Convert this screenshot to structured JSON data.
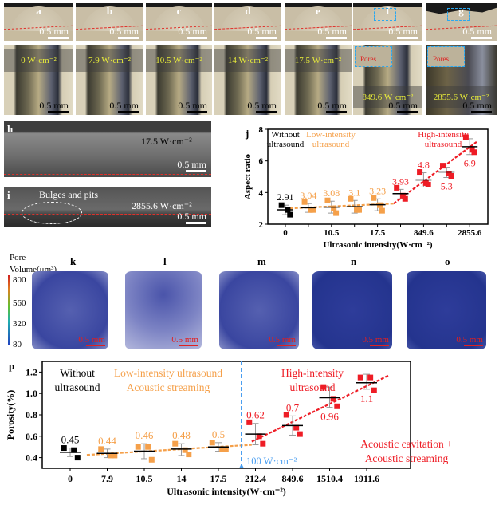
{
  "panels_top": [
    {
      "letter": "a",
      "intensity": "0 W·cm⁻²",
      "scale": "0.5 mm"
    },
    {
      "letter": "b",
      "intensity": "7.9 W·cm⁻²",
      "scale": "0.5 mm"
    },
    {
      "letter": "c",
      "intensity": "10.5 W·cm⁻²",
      "scale": "0.5 mm"
    },
    {
      "letter": "d",
      "intensity": "14 W·cm⁻²",
      "scale": "0.5 mm"
    },
    {
      "letter": "e",
      "intensity": "17.5 W·cm⁻²",
      "scale": "0.5 mm"
    },
    {
      "letter": "f",
      "intensity": "849.6 W·cm⁻²",
      "scale": "0.5 mm",
      "pores": "Pores"
    },
    {
      "letter": "g",
      "intensity": "2855.6 W·cm⁻²",
      "scale": "0.5 mm",
      "pores": "Pores"
    }
  ],
  "panel_h": {
    "letter": "h",
    "intensity": "17.5 W·cm⁻²",
    "scale": "0.5 mm"
  },
  "panel_i": {
    "letter": "i",
    "intensity": "2855.6 W·cm⁻²",
    "scale": "0.5 mm",
    "annotation": "Bulges and pits"
  },
  "ct": {
    "colorbar_title_1": "Pore",
    "colorbar_title_2": "Volume(μm³)",
    "colorbar_ticks": [
      "800",
      "560",
      "320",
      "80"
    ],
    "panels": [
      {
        "letter": "k",
        "scale": "0.5 mm"
      },
      {
        "letter": "l",
        "scale": "0.5 mm"
      },
      {
        "letter": "m",
        "scale": "0.5 mm"
      },
      {
        "letter": "n",
        "scale": "0.5 mm"
      },
      {
        "letter": "o",
        "scale": "0.5 mm"
      }
    ]
  },
  "colors": {
    "none": "#000000",
    "low": "#f5a04a",
    "high": "#ee1c25",
    "threshold": "#4a9ef0"
  },
  "chart_data": [
    {
      "panel": "j",
      "type": "scatter",
      "ylabel": "Aspect ratio",
      "xlabel": "Ultrasonic intensity(W·cm⁻²)",
      "ylim": [
        2,
        8
      ],
      "yticks": [
        2,
        4,
        6,
        8
      ],
      "xtick_labels": [
        "0",
        "",
        "10.5",
        "",
        "17.5",
        "",
        "849.6",
        "",
        "2855.6"
      ],
      "groups": [
        {
          "mean": 2.91,
          "label": "2.91",
          "regime": "none",
          "points": [
            3.2,
            2.9,
            2.6
          ],
          "err": [
            2.6,
            3.2
          ]
        },
        {
          "mean": 3.04,
          "label": "3.04",
          "regime": "low",
          "points": [
            3.4,
            2.9,
            2.9
          ],
          "err": [
            2.75,
            3.3
          ]
        },
        {
          "mean": 3.08,
          "label": "3.08",
          "regime": "low",
          "points": [
            3.5,
            3.0,
            2.7
          ],
          "err": [
            2.7,
            3.45
          ]
        },
        {
          "mean": 3.1,
          "label": "3.1",
          "regime": "low",
          "points": [
            3.6,
            2.9,
            2.9
          ],
          "err": [
            2.7,
            3.5
          ]
        },
        {
          "mean": 3.23,
          "label": "3.23",
          "regime": "low",
          "points": [
            3.65,
            3.2,
            2.85
          ],
          "err": [
            2.85,
            3.6
          ]
        },
        {
          "mean": 3.93,
          "label": "3.93",
          "regime": "high",
          "points": [
            4.3,
            3.8,
            3.6
          ],
          "err": [
            3.6,
            4.2
          ]
        },
        {
          "mean": 4.8,
          "label": "4.8",
          "regime": "high",
          "points": [
            5.3,
            4.6,
            4.5
          ],
          "err": [
            4.35,
            5.25
          ]
        },
        {
          "mean": 5.3,
          "label": "5.3",
          "regime": "high",
          "points": [
            5.7,
            5.2,
            5.05
          ],
          "err": [
            4.95,
            5.6
          ]
        },
        {
          "mean": 6.9,
          "label": "6.9",
          "regime": "high",
          "points": [
            7.5,
            6.7,
            6.55
          ],
          "err": [
            6.4,
            7.4
          ]
        }
      ],
      "annotations": [
        {
          "text": "Without",
          "regime": "none"
        },
        {
          "text": "ultrasound",
          "regime": "none"
        },
        {
          "text": "Low-intensity",
          "regime": "low"
        },
        {
          "text": "ultrasound",
          "regime": "low"
        },
        {
          "text": "High-intensity",
          "regime": "high"
        },
        {
          "text": "ultrasound",
          "regime": "high"
        }
      ],
      "trend_low": [
        [
          0.2,
          3.0
        ],
        [
          4.7,
          3.3
        ]
      ],
      "trend_high": [
        [
          4.7,
          3.3
        ],
        [
          8.3,
          7.2
        ]
      ]
    },
    {
      "panel": "p",
      "type": "scatter",
      "ylabel": "Porosity(%)",
      "xlabel": "Ultrasonic intensity(W·cm⁻²)",
      "ylim": [
        0.3,
        1.3
      ],
      "yticks": [
        0.4,
        0.6,
        0.8,
        1.0,
        1.2
      ],
      "xtick_labels": [
        "0",
        "7.9",
        "10.5",
        "14",
        "17.5",
        "212.4",
        "849.6",
        "1510.4",
        "1911.6"
      ],
      "groups": [
        {
          "mean": 0.45,
          "label": "0.45",
          "regime": "none",
          "points": [
            0.49,
            0.47,
            0.4
          ],
          "err": [
            0.41,
            0.49
          ]
        },
        {
          "mean": 0.44,
          "label": "0.44",
          "regime": "low",
          "points": [
            0.48,
            0.42,
            0.42
          ],
          "err": [
            0.4,
            0.48
          ]
        },
        {
          "mean": 0.46,
          "label": "0.46",
          "regime": "low",
          "points": [
            0.5,
            0.5,
            0.38
          ],
          "err": [
            0.39,
            0.53
          ]
        },
        {
          "mean": 0.48,
          "label": "0.48",
          "regime": "low",
          "points": [
            0.53,
            0.47,
            0.43
          ],
          "err": [
            0.42,
            0.53
          ]
        },
        {
          "mean": 0.5,
          "label": "0.5",
          "regime": "low",
          "points": [
            0.54,
            0.48,
            0.48
          ],
          "err": [
            0.46,
            0.54
          ]
        },
        {
          "mean": 0.62,
          "label": "0.62",
          "regime": "high",
          "points": [
            0.73,
            0.6,
            0.53
          ],
          "err": [
            0.52,
            0.72
          ]
        },
        {
          "mean": 0.7,
          "label": "0.7",
          "regime": "high",
          "points": [
            0.8,
            0.68,
            0.62
          ],
          "err": [
            0.61,
            0.79
          ]
        },
        {
          "mean": 0.96,
          "label": "0.96",
          "regime": "high",
          "points": [
            1.06,
            0.95,
            0.88
          ],
          "err": [
            0.87,
            1.06
          ]
        },
        {
          "mean": 1.1,
          "label": "1.1",
          "regime": "high",
          "points": [
            1.15,
            1.15,
            1.03
          ],
          "err": [
            1.04,
            1.18
          ]
        }
      ],
      "annotations": [
        {
          "text": "Without",
          "regime": "none"
        },
        {
          "text": "ultrasound",
          "regime": "none"
        },
        {
          "text": "Low-intensity ultrasound",
          "regime": "low"
        },
        {
          "text": "Acoustic streaming",
          "regime": "low"
        },
        {
          "text": "High-intensity",
          "regime": "high"
        },
        {
          "text": "ultrasound",
          "regime": "high"
        },
        {
          "text": "Acoustic cavitation +",
          "regime": "high"
        },
        {
          "text": "Acoustic streaming",
          "regime": "high"
        }
      ],
      "threshold_label": "100 W·cm⁻²",
      "trend_low": [
        [
          0.45,
          0.425
        ],
        [
          4.9,
          0.52
        ]
      ],
      "trend_high": [
        [
          4.9,
          0.55
        ],
        [
          8.6,
          1.17
        ]
      ]
    }
  ]
}
